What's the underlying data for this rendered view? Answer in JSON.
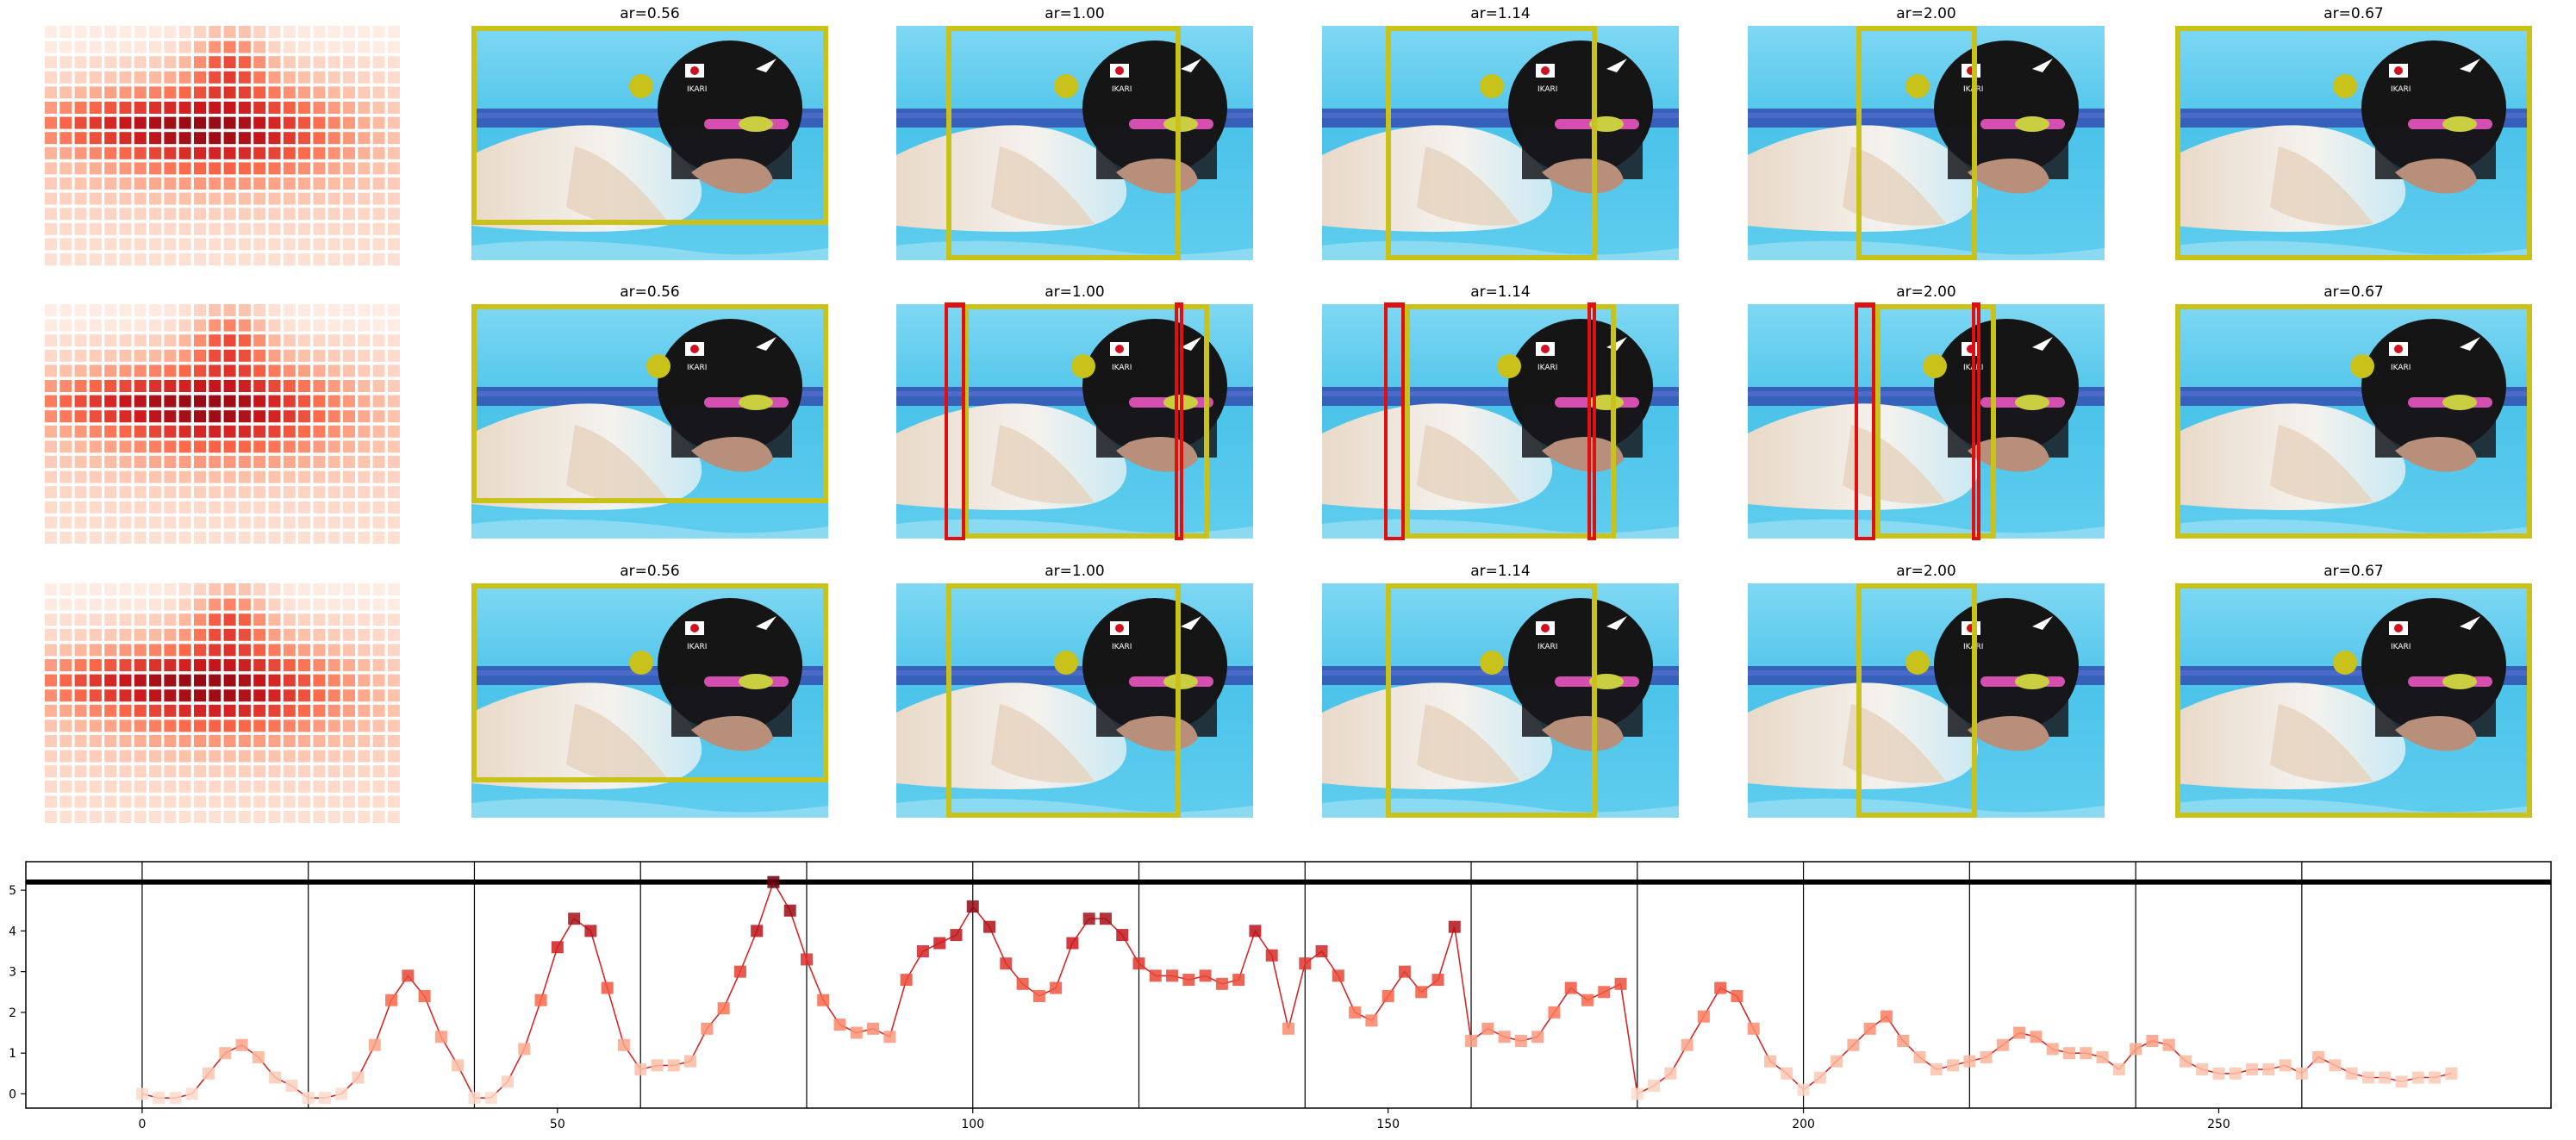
{
  "panel_rows": [
    {
      "panels": [
        {
          "title": "ar=0.56"
        },
        {
          "title": "ar=1.00"
        },
        {
          "title": "ar=1.14"
        },
        {
          "title": "ar=2.00"
        },
        {
          "title": "ar=0.67"
        }
      ]
    },
    {
      "panels": [
        {
          "title": "ar=0.56"
        },
        {
          "title": "ar=1.00"
        },
        {
          "title": "ar=1.14"
        },
        {
          "title": "ar=2.00"
        },
        {
          "title": "ar=0.67"
        }
      ]
    },
    {
      "panels": [
        {
          "title": "ar=0.56"
        },
        {
          "title": "ar=1.00"
        },
        {
          "title": "ar=1.14"
        },
        {
          "title": "ar=2.00"
        },
        {
          "title": "ar=0.67"
        }
      ]
    }
  ],
  "heatmap_style": {
    "grid": "24x16",
    "colormap": "Reds"
  },
  "crop_colors": {
    "selected": "#c8c21a",
    "rejected": "#e01010",
    "point": "#c8c21a"
  },
  "photo_icon": "swimmer-photo",
  "chart_data": {
    "type": "line",
    "x": [
      0,
      2,
      4,
      6,
      8,
      10,
      12,
      14,
      16,
      18,
      20,
      22,
      24,
      26,
      28,
      30,
      32,
      34,
      36,
      38,
      40,
      42,
      44,
      46,
      48,
      50,
      52,
      54,
      56,
      58,
      60,
      62,
      64,
      66,
      68,
      70,
      72,
      74,
      76,
      78,
      80,
      82,
      84,
      86,
      88,
      90,
      92,
      94,
      96,
      98,
      100,
      102,
      104,
      106,
      108,
      110,
      112,
      114,
      116,
      118,
      120,
      122,
      124,
      126,
      128,
      130,
      132,
      134,
      136,
      138,
      140,
      142,
      144,
      146,
      148,
      150,
      152,
      154,
      156,
      158,
      160,
      162,
      164,
      166,
      168,
      170,
      172,
      174,
      176,
      178,
      180,
      182,
      184,
      186,
      188,
      190,
      192,
      194,
      196,
      198,
      200,
      202,
      204,
      206,
      208,
      210,
      212,
      214,
      216,
      218,
      220,
      222,
      224,
      226,
      228,
      230,
      232,
      234,
      236,
      238,
      240,
      242,
      244,
      246,
      248,
      250,
      252,
      254,
      256,
      258,
      260,
      262,
      264,
      266,
      268,
      270,
      272,
      274,
      276,
      278
    ],
    "series": [
      {
        "values": [
          0.0,
          -0.1,
          -0.1,
          0.0,
          0.5,
          1.0,
          1.2,
          0.9,
          0.4,
          0.2,
          -0.1,
          -0.1,
          0.0,
          0.4,
          1.2,
          2.3,
          2.9,
          2.4,
          1.4,
          0.7,
          -0.1,
          -0.1,
          0.3,
          1.1,
          2.3,
          3.6,
          4.3,
          4.0,
          2.6,
          1.2,
          0.6,
          0.7,
          0.7,
          0.8,
          1.6,
          2.1,
          3.0,
          4.0,
          5.2,
          4.5,
          3.3,
          2.3,
          1.7,
          1.5,
          1.6,
          1.4,
          2.8,
          3.5,
          3.7,
          3.9,
          4.6,
          4.1,
          3.2,
          2.7,
          2.4,
          2.6,
          3.7,
          4.3,
          4.3,
          3.9,
          3.2,
          2.9,
          2.9,
          2.8,
          2.9,
          2.7,
          2.8,
          4.0,
          3.4,
          1.6,
          3.2,
          3.5,
          2.9,
          2.0,
          1.8,
          2.4,
          3.0,
          2.5,
          2.8,
          4.1,
          1.3,
          1.6,
          1.4,
          1.3,
          1.4,
          2.0,
          2.6,
          2.3,
          2.5,
          2.7,
          0.0,
          0.2,
          0.5,
          1.2,
          1.9,
          2.6,
          2.4,
          1.6,
          0.8,
          0.5,
          0.1,
          0.4,
          0.8,
          1.2,
          1.6,
          1.9,
          1.3,
          0.9,
          0.6,
          0.7,
          0.8,
          0.9,
          1.2,
          1.5,
          1.4,
          1.1,
          1.0,
          1.0,
          0.9,
          0.6,
          1.1,
          1.3,
          1.2,
          0.8,
          0.6,
          0.5,
          0.5,
          0.6,
          0.6,
          0.7,
          0.5,
          0.9,
          0.7,
          0.5,
          0.4,
          0.4,
          0.3,
          0.4,
          0.4,
          0.5
        ]
      }
    ],
    "xlim": [
      -14,
      290
    ],
    "ylim": [
      -0.35,
      5.7
    ],
    "xticks": [
      0,
      50,
      100,
      150,
      200,
      250
    ],
    "yticks": [
      0,
      1,
      2,
      3,
      4,
      5
    ],
    "vlines": [
      0,
      20,
      40,
      60,
      80,
      100,
      120,
      140,
      160,
      180,
      200,
      220,
      240,
      260
    ],
    "hline": 5.2,
    "line_color": "#d62728",
    "marker": "square",
    "colormap": "Reds",
    "grid": false,
    "title": "",
    "xlabel": "",
    "ylabel": ""
  }
}
